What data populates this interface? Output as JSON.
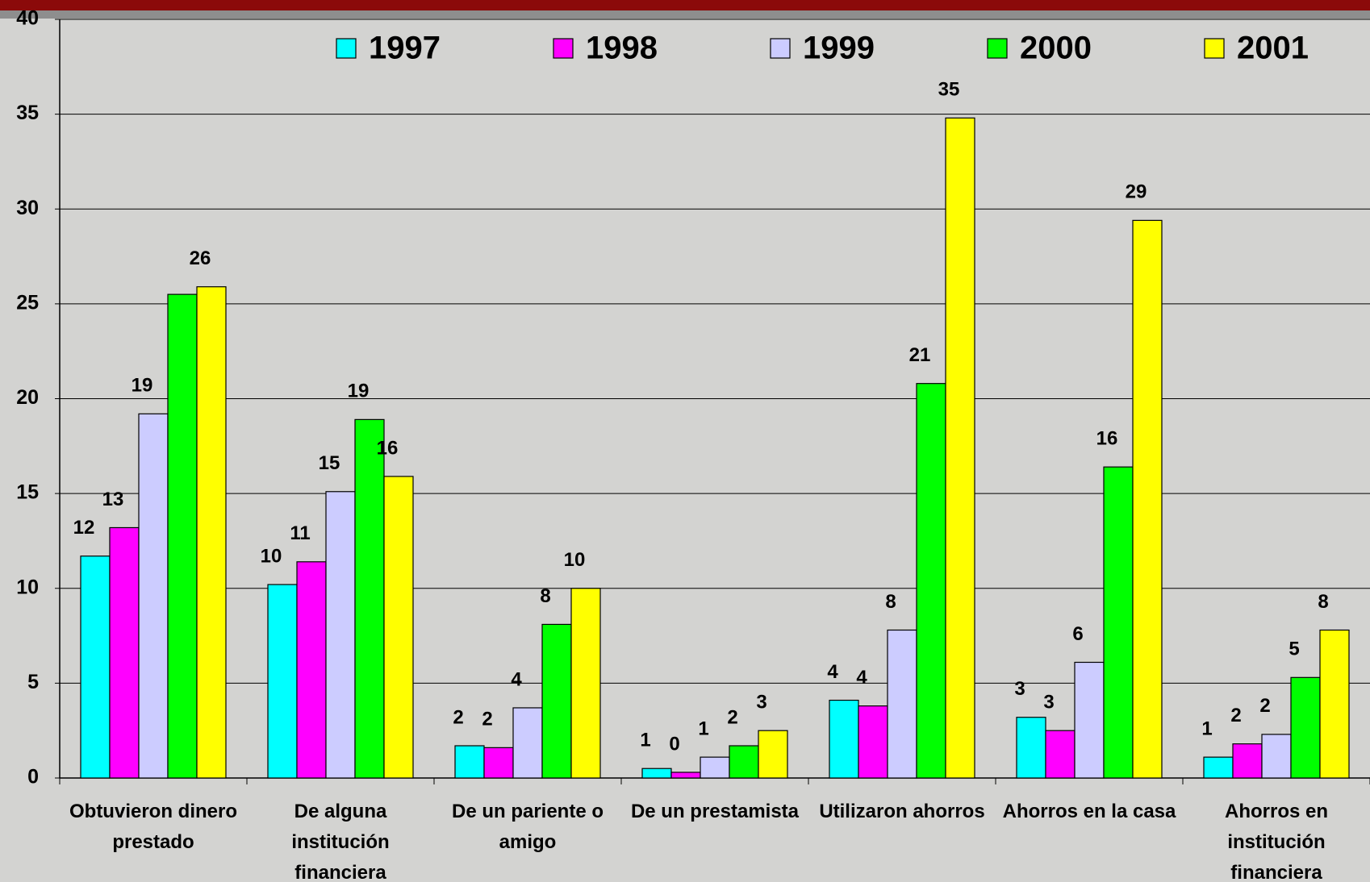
{
  "chart_data": {
    "type": "bar",
    "categories": [
      "Obtuvieron dinero prestado",
      "De alguna institución financiera",
      "De un pariente o amigo",
      "De un prestamista",
      "Utilizaron ahorros",
      "Ahorros en la casa",
      "Ahorros en institución financiera"
    ],
    "series": [
      {
        "name": "1997",
        "color": "#00ffff",
        "values": [
          11.7,
          10.2,
          1.7,
          0.5,
          4.1,
          3.2,
          1.1
        ],
        "value_labels": [
          "12",
          "10",
          "2",
          "1",
          "4",
          "3",
          "1"
        ]
      },
      {
        "name": "1998",
        "color": "#ff00ff",
        "values": [
          13.2,
          11.4,
          1.6,
          0.3,
          3.8,
          2.5,
          1.8
        ],
        "value_labels": [
          "13",
          "11",
          "2",
          "0",
          "4",
          "3",
          "2"
        ]
      },
      {
        "name": "1999",
        "color": "#ccccff",
        "values": [
          19.2,
          15.1,
          3.7,
          1.1,
          7.8,
          6.1,
          2.3
        ],
        "value_labels": [
          "19",
          "15",
          "4",
          "1",
          "8",
          "6",
          "2"
        ]
      },
      {
        "name": "2000",
        "color": "#00ff00",
        "values": [
          25.5,
          18.9,
          8.1,
          1.7,
          20.8,
          16.4,
          5.3
        ],
        "value_labels": [
          null,
          "19",
          "8",
          "2",
          "21",
          "16",
          "5"
        ]
      },
      {
        "name": "2001",
        "color": "#ffff00",
        "values": [
          25.9,
          15.9,
          10.0,
          2.5,
          34.8,
          29.4,
          7.8
        ],
        "value_labels": [
          "26",
          "16",
          "10",
          "3",
          "35",
          "29",
          "8"
        ]
      }
    ],
    "ylim": [
      0,
      40
    ],
    "yticks": [
      0,
      5,
      10,
      15,
      20,
      25,
      30,
      35,
      40
    ],
    "grid": true,
    "legend": "top"
  }
}
